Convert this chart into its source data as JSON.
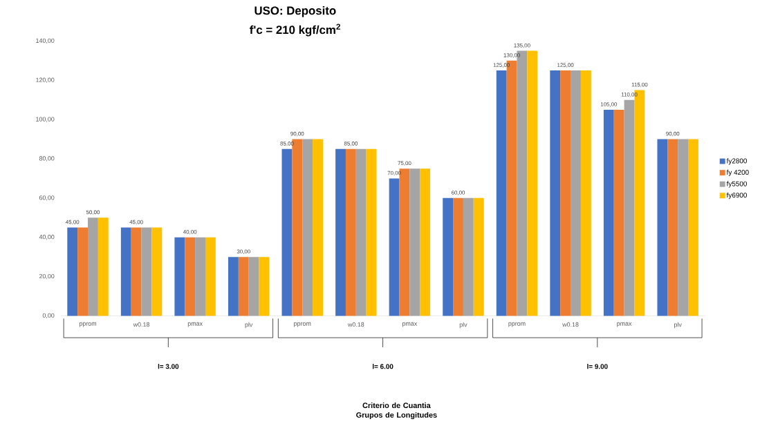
{
  "chart_data": {
    "type": "bar",
    "title": "USO: Deposito",
    "subtitle": "f'c = 210 kgf/cm$^{2}$",
    "categories": [
      "pprom",
      "w0.18",
      "pmax",
      "plv",
      "pprom",
      "w0.18",
      "pmax",
      "plv",
      "pprom",
      "w0.18",
      "pmax",
      "plv"
    ],
    "annotations": [
      "l= 3.00",
      "l= 6.00",
      "l= 9.00",
      "Criterio de Cuantia Grupos de Longitudes"
    ],
    "series": [
      {
        "name": "fy2800",
        "color": "#4472c4",
        "values": [
          45,
          45,
          40,
          30,
          85,
          85,
          70,
          60,
          125,
          125,
          105,
          90
        ],
        "value_labels": [
          "45,00",
          null,
          null,
          null,
          "85,00",
          null,
          "70,00",
          null,
          "125,00",
          null,
          "105,00",
          null
        ]
      },
      {
        "name": "fy 4200",
        "color": "#ed7d31",
        "values": [
          45,
          45,
          40,
          30,
          90,
          85,
          75,
          60,
          130,
          125,
          105,
          90
        ],
        "value_labels": [
          null,
          "45,00",
          "40,00",
          "30,00",
          "90,00",
          "85,00",
          "75,00",
          "60,00",
          "130,00",
          "125,00",
          null,
          "90,00"
        ]
      },
      {
        "name": "fy5500",
        "color": "#a5a5a5",
        "values": [
          50,
          45,
          40,
          30,
          90,
          85,
          75,
          60,
          135,
          125,
          110,
          90
        ],
        "value_labels": [
          "50,00",
          null,
          null,
          null,
          null,
          null,
          null,
          null,
          "135,00",
          null,
          "110,00",
          null
        ]
      },
      {
        "name": "fy6900",
        "color": "#ffc000",
        "values": [
          50,
          45,
          40,
          30,
          90,
          85,
          75,
          60,
          135,
          125,
          115,
          90
        ],
        "value_labels": [
          null,
          null,
          null,
          null,
          null,
          null,
          null,
          null,
          null,
          null,
          "115,00",
          null
        ]
      }
    ],
    "ylim": [
      0,
      140
    ],
    "yticks": [
      {
        "value": 0,
        "label": "0,00"
      },
      {
        "value": 20,
        "label": "20,00"
      },
      {
        "value": 40,
        "label": "40,00"
      },
      {
        "value": 60,
        "label": "60,00"
      },
      {
        "value": 80,
        "label": "80,00"
      },
      {
        "value": 100,
        "label": "100,00"
      },
      {
        "value": 120,
        "label": "120,00"
      },
      {
        "value": 140,
        "label": "140,00"
      }
    ],
    "legend": "right"
  }
}
